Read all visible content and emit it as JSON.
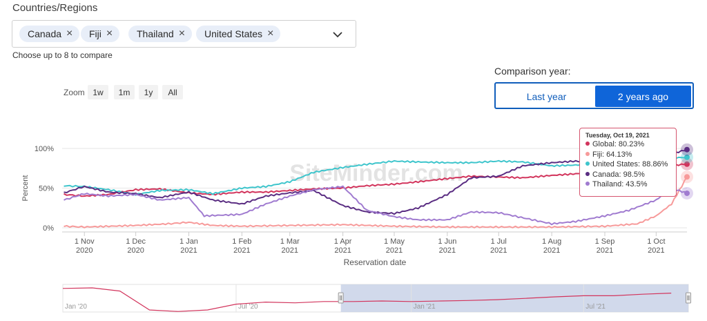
{
  "filters": {
    "title": "Countries/Regions",
    "chips": [
      {
        "label": "Canada"
      },
      {
        "label": "Fiji"
      },
      {
        "label": "Thailand"
      },
      {
        "label": "United States"
      }
    ],
    "hint": "Choose up to 8 to compare"
  },
  "comparison": {
    "label": "Comparison year:",
    "options": [
      "Last year",
      "2 years ago"
    ],
    "selected": "2 years ago"
  },
  "zoom": {
    "label": "Zoom",
    "buttons": [
      "1w",
      "1m",
      "1y",
      "All"
    ]
  },
  "watermark": "SiteMinder.com",
  "tooltip": {
    "date": "Tuesday, Oct 19, 2021",
    "rows": [
      {
        "text": "Global: 80.23%",
        "color": "#d2345c"
      },
      {
        "text": "Fiji: 64.13%",
        "color": "#f79a9a"
      },
      {
        "text": "United States: 88.86%",
        "color": "#3ec5cc"
      },
      {
        "text": "Canada: 98.5%",
        "color": "#5a2d82"
      },
      {
        "text": "Thailand: 43.5%",
        "color": "#a07bd0"
      }
    ]
  },
  "chart_data": [
    {
      "type": "line",
      "ylabel": "Percent",
      "xlabel": "Reservation date",
      "ylim": [
        0,
        100
      ],
      "yticks": [
        "0%",
        "50%",
        "100%"
      ],
      "xticks": [
        {
          "date": "2020-11-01",
          "line1": "1 Nov",
          "line2": "2020"
        },
        {
          "date": "2020-12-01",
          "line1": "1 Dec",
          "line2": "2020"
        },
        {
          "date": "2021-01-01",
          "line1": "1 Jan",
          "line2": "2021"
        },
        {
          "date": "2021-02-01",
          "line1": "1 Feb",
          "line2": "2021"
        },
        {
          "date": "2021-03-01",
          "line1": "1 Mar",
          "line2": "2021"
        },
        {
          "date": "2021-04-01",
          "line1": "1 Apr",
          "line2": "2021"
        },
        {
          "date": "2021-05-01",
          "line1": "1 May",
          "line2": "2021"
        },
        {
          "date": "2021-06-01",
          "line1": "1 Jun",
          "line2": "2021"
        },
        {
          "date": "2021-07-01",
          "line1": "1 Jul",
          "line2": "2021"
        },
        {
          "date": "2021-08-01",
          "line1": "1 Aug",
          "line2": "2021"
        },
        {
          "date": "2021-09-01",
          "line1": "1 Sep",
          "line2": "2021"
        },
        {
          "date": "2021-10-01",
          "line1": "1 Oct",
          "line2": "2021"
        }
      ],
      "series": [
        {
          "name": "Global",
          "color": "#d2345c",
          "points": [
            [
              "2020-10-20",
              42
            ],
            [
              "2020-11-01",
              40
            ],
            [
              "2020-11-15",
              42
            ],
            [
              "2020-12-01",
              48
            ],
            [
              "2020-12-15",
              49
            ],
            [
              "2021-01-01",
              44
            ],
            [
              "2021-01-15",
              42
            ],
            [
              "2021-02-01",
              45
            ],
            [
              "2021-02-15",
              45
            ],
            [
              "2021-03-01",
              47
            ],
            [
              "2021-03-15",
              49
            ],
            [
              "2021-04-01",
              50
            ],
            [
              "2021-04-15",
              53
            ],
            [
              "2021-05-01",
              55
            ],
            [
              "2021-05-15",
              58
            ],
            [
              "2021-06-01",
              62
            ],
            [
              "2021-06-15",
              65
            ],
            [
              "2021-07-01",
              64
            ],
            [
              "2021-07-15",
              63
            ],
            [
              "2021-08-01",
              66
            ],
            [
              "2021-08-15",
              68
            ],
            [
              "2021-09-01",
              72
            ],
            [
              "2021-09-15",
              74
            ],
            [
              "2021-10-01",
              77
            ],
            [
              "2021-10-19",
              80.23
            ]
          ]
        },
        {
          "name": "Fiji",
          "color": "#f79a9a",
          "points": [
            [
              "2020-10-20",
              2
            ],
            [
              "2020-11-01",
              1
            ],
            [
              "2020-12-01",
              3
            ],
            [
              "2020-12-20",
              5
            ],
            [
              "2021-01-01",
              7
            ],
            [
              "2021-01-15",
              3
            ],
            [
              "2021-02-01",
              2
            ],
            [
              "2021-03-01",
              3
            ],
            [
              "2021-04-01",
              4
            ],
            [
              "2021-05-01",
              2
            ],
            [
              "2021-06-01",
              1
            ],
            [
              "2021-07-01",
              1
            ],
            [
              "2021-08-01",
              1
            ],
            [
              "2021-09-01",
              2
            ],
            [
              "2021-09-20",
              5
            ],
            [
              "2021-10-01",
              15
            ],
            [
              "2021-10-10",
              30
            ],
            [
              "2021-10-19",
              64.13
            ]
          ]
        },
        {
          "name": "United States",
          "color": "#3ec5cc",
          "points": [
            [
              "2020-10-20",
              53
            ],
            [
              "2020-11-01",
              52
            ],
            [
              "2020-11-15",
              48
            ],
            [
              "2020-12-01",
              42
            ],
            [
              "2020-12-15",
              47
            ],
            [
              "2021-01-01",
              48
            ],
            [
              "2021-01-15",
              43
            ],
            [
              "2021-02-01",
              50
            ],
            [
              "2021-02-15",
              52
            ],
            [
              "2021-03-01",
              58
            ],
            [
              "2021-03-15",
              70
            ],
            [
              "2021-04-01",
              76
            ],
            [
              "2021-04-15",
              80
            ],
            [
              "2021-05-01",
              84
            ],
            [
              "2021-05-15",
              83
            ],
            [
              "2021-06-01",
              82
            ],
            [
              "2021-06-15",
              82
            ],
            [
              "2021-07-01",
              84
            ],
            [
              "2021-07-15",
              83
            ],
            [
              "2021-08-01",
              78
            ],
            [
              "2021-08-15",
              79
            ],
            [
              "2021-09-01",
              83
            ],
            [
              "2021-09-15",
              86
            ],
            [
              "2021-10-01",
              87
            ],
            [
              "2021-10-19",
              88.86
            ]
          ]
        },
        {
          "name": "Canada",
          "color": "#5a2d82",
          "points": [
            [
              "2020-10-20",
              44
            ],
            [
              "2020-11-01",
              52
            ],
            [
              "2020-11-15",
              45
            ],
            [
              "2020-12-01",
              43
            ],
            [
              "2020-12-15",
              38
            ],
            [
              "2021-01-01",
              45
            ],
            [
              "2021-01-15",
              35
            ],
            [
              "2021-02-01",
              30
            ],
            [
              "2021-02-15",
              40
            ],
            [
              "2021-03-01",
              44
            ],
            [
              "2021-03-15",
              47
            ],
            [
              "2021-04-01",
              28
            ],
            [
              "2021-04-15",
              20
            ],
            [
              "2021-05-01",
              18
            ],
            [
              "2021-05-15",
              25
            ],
            [
              "2021-06-01",
              42
            ],
            [
              "2021-06-15",
              63
            ],
            [
              "2021-07-01",
              65
            ],
            [
              "2021-07-15",
              78
            ],
            [
              "2021-08-01",
              82
            ],
            [
              "2021-08-15",
              84
            ],
            [
              "2021-09-01",
              80
            ],
            [
              "2021-09-15",
              82
            ],
            [
              "2021-10-01",
              88
            ],
            [
              "2021-10-19",
              98.5
            ]
          ]
        },
        {
          "name": "Thailand",
          "color": "#a07bd0",
          "points": [
            [
              "2020-10-20",
              35
            ],
            [
              "2020-11-01",
              43
            ],
            [
              "2020-11-15",
              40
            ],
            [
              "2020-12-01",
              42
            ],
            [
              "2020-12-15",
              35
            ],
            [
              "2021-01-01",
              38
            ],
            [
              "2021-01-10",
              15
            ],
            [
              "2021-02-01",
              17
            ],
            [
              "2021-02-15",
              30
            ],
            [
              "2021-03-01",
              40
            ],
            [
              "2021-03-15",
              48
            ],
            [
              "2021-04-01",
              52
            ],
            [
              "2021-04-15",
              22
            ],
            [
              "2021-05-01",
              14
            ],
            [
              "2021-05-15",
              10
            ],
            [
              "2021-06-01",
              10
            ],
            [
              "2021-06-15",
              20
            ],
            [
              "2021-07-01",
              19
            ],
            [
              "2021-08-01",
              5
            ],
            [
              "2021-08-15",
              8
            ],
            [
              "2021-09-01",
              15
            ],
            [
              "2021-09-15",
              22
            ],
            [
              "2021-10-01",
              35
            ],
            [
              "2021-10-10",
              50
            ],
            [
              "2021-10-19",
              43.5
            ]
          ]
        }
      ]
    },
    {
      "type": "area",
      "role": "navigator",
      "xticks": [
        "Jan '20",
        "Jul '20",
        "Jan '21",
        "Jul '21"
      ],
      "series": [
        {
          "color": "#d2345c",
          "points": [
            [
              "2020-01-01",
              90
            ],
            [
              "2020-02-01",
              92
            ],
            [
              "2020-03-01",
              80
            ],
            [
              "2020-04-01",
              8
            ],
            [
              "2020-05-01",
              2
            ],
            [
              "2020-06-01",
              8
            ],
            [
              "2020-07-01",
              30
            ],
            [
              "2020-08-01",
              38
            ],
            [
              "2020-09-01",
              35
            ],
            [
              "2020-10-01",
              40
            ],
            [
              "2020-11-01",
              40
            ],
            [
              "2020-12-01",
              42
            ],
            [
              "2021-01-01",
              40
            ],
            [
              "2021-02-01",
              42
            ],
            [
              "2021-03-01",
              44
            ],
            [
              "2021-04-01",
              47
            ],
            [
              "2021-05-01",
              52
            ],
            [
              "2021-06-01",
              58
            ],
            [
              "2021-07-01",
              62
            ],
            [
              "2021-08-01",
              62
            ],
            [
              "2021-09-01",
              68
            ],
            [
              "2021-10-01",
              72
            ]
          ]
        }
      ],
      "selected_range": [
        "2020-10-19",
        "2021-10-19"
      ]
    }
  ]
}
